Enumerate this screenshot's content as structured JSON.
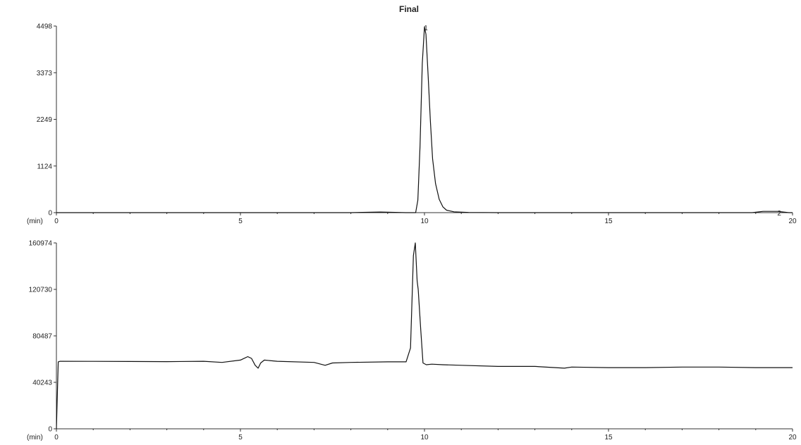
{
  "chart_data": [
    {
      "type": "line",
      "title": "Final",
      "xlabel": "(min)",
      "ylabel": "",
      "xlim": [
        0,
        20
      ],
      "ylim": [
        0,
        4498
      ],
      "x_ticks": [
        "0",
        "5",
        "10",
        "15",
        "20"
      ],
      "y_ticks": [
        "0",
        "1124",
        "2249",
        "3373",
        "4498"
      ],
      "peak_labels": [
        {
          "label": "1",
          "x": 10.0,
          "y": 4498
        },
        {
          "label": "2",
          "x": 19.6,
          "y": 30
        }
      ],
      "series": [
        {
          "x": [
            0,
            5,
            6.5,
            8.0,
            8.8,
            9.5,
            9.76,
            9.82,
            9.88,
            9.94,
            10.0,
            10.04,
            10.1,
            10.16,
            10.22,
            10.3,
            10.4,
            10.5,
            10.6,
            10.8,
            11.2,
            12,
            15,
            18.9,
            19.2,
            19.6,
            19.9,
            20
          ],
          "values": [
            0,
            0,
            0,
            0,
            15,
            0,
            0,
            300,
            1600,
            3600,
            4480,
            4300,
            3300,
            2200,
            1300,
            700,
            320,
            140,
            60,
            20,
            5,
            0,
            0,
            0,
            30,
            30,
            0,
            0
          ]
        }
      ]
    },
    {
      "type": "line",
      "title": "",
      "xlabel": "(min)",
      "ylabel": "",
      "xlim": [
        0,
        20
      ],
      "ylim": [
        0,
        160974
      ],
      "x_ticks": [
        "0",
        "5",
        "10",
        "15",
        "20"
      ],
      "y_ticks": [
        "0",
        "40243",
        "80487",
        "120730",
        "160974"
      ],
      "series": [
        {
          "x": [
            0,
            0.05,
            0.1,
            1,
            2,
            3,
            4,
            4.5,
            5.0,
            5.2,
            5.3,
            5.4,
            5.48,
            5.55,
            5.65,
            6,
            7,
            7.3,
            7.5,
            8,
            9,
            9.5,
            9.62,
            9.7,
            9.75,
            9.8,
            9.83,
            9.9,
            9.96,
            10.05,
            10.2,
            10.5,
            11,
            12,
            13,
            13.8,
            14,
            15,
            16,
            17,
            18,
            19,
            20
          ],
          "values": [
            0,
            58000,
            58500,
            58400,
            58300,
            58200,
            58500,
            57500,
            59500,
            62500,
            61000,
            55000,
            52500,
            57000,
            59500,
            58500,
            57500,
            55000,
            57000,
            57500,
            58000,
            58000,
            70000,
            150000,
            160974,
            128000,
            120730,
            85000,
            57000,
            55500,
            56000,
            55500,
            55000,
            54000,
            54000,
            52500,
            53500,
            53000,
            53000,
            53500,
            53500,
            53000,
            53000
          ]
        }
      ]
    }
  ]
}
